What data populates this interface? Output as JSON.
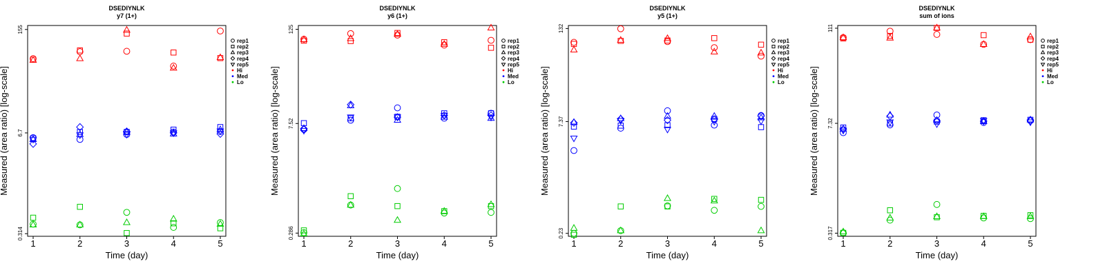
{
  "chart_data": [
    {
      "type": "scatter",
      "title": "DSEDIYNLK",
      "subtitle": "y7 (1+)",
      "xlabel": "Time (day)",
      "ylabel": "Measured (area ratio) [log-scale]",
      "x_ticks": [
        "1",
        "2",
        "3",
        "4",
        "5"
      ],
      "y_ticks": [
        {
          "value": 0.314,
          "label": "0.314"
        },
        {
          "value": 6.7,
          "label": "6.7"
        },
        {
          "value": 155,
          "label": "155"
        }
      ],
      "ylim": [
        0.29,
        175
      ],
      "legend": {
        "position": "right",
        "replicates": [
          {
            "name": "rep1",
            "marker": "circle"
          },
          {
            "name": "rep2",
            "marker": "square"
          },
          {
            "name": "rep3",
            "marker": "triangle-up"
          },
          {
            "name": "rep4",
            "marker": "diamond"
          },
          {
            "name": "rep5",
            "marker": "triangle-down"
          }
        ],
        "levels": [
          {
            "name": "Hi",
            "color": "#ff0000"
          },
          {
            "name": "Med",
            "color": "#0000ff"
          },
          {
            "name": "Lo",
            "color": "#00cc00"
          }
        ]
      },
      "series": [
        {
          "level": "Hi",
          "rep": "rep1",
          "x": [
            1,
            2,
            3,
            4,
            5
          ],
          "y": [
            64,
            79,
            80,
            51,
            148
          ]
        },
        {
          "level": "Hi",
          "rep": "rep2",
          "x": [
            1,
            2,
            3,
            4,
            5
          ],
          "y": [
            62,
            82,
            137,
            77,
            65
          ]
        },
        {
          "level": "Hi",
          "rep": "rep3",
          "x": [
            1,
            2,
            3,
            4,
            5
          ],
          "y": [
            61,
            64,
            152,
            48,
            66
          ]
        },
        {
          "level": "Med",
          "rep": "rep1",
          "x": [
            1,
            2,
            3,
            4,
            5
          ],
          "y": [
            5.8,
            5.5,
            6.4,
            6.9,
            7.0
          ]
        },
        {
          "level": "Med",
          "rep": "rep2",
          "x": [
            1,
            2,
            3,
            4,
            5
          ],
          "y": [
            5.7,
            6.9,
            6.9,
            7.4,
            8.0
          ]
        },
        {
          "level": "Med",
          "rep": "rep3",
          "x": [
            1,
            2,
            3,
            4,
            5
          ],
          "y": [
            5.5,
            6.4,
            6.9,
            6.5,
            7.4
          ]
        },
        {
          "level": "Med",
          "rep": "rep4",
          "x": [
            1,
            2,
            3,
            4,
            5
          ],
          "y": [
            4.8,
            8.0,
            7.0,
            6.7,
            6.5
          ]
        },
        {
          "level": "Med",
          "rep": "rep5",
          "x": [
            1,
            2,
            3,
            4,
            5
          ],
          "y": [
            5.5,
            6.3,
            6.4,
            6.7,
            7.1
          ]
        },
        {
          "level": "Lo",
          "rep": "rep1",
          "x": [
            1,
            2,
            3,
            4,
            5
          ],
          "y": [
            0.42,
            0.41,
            0.6,
            0.38,
            0.44
          ]
        },
        {
          "level": "Lo",
          "rep": "rep2",
          "x": [
            1,
            2,
            3,
            4,
            5
          ],
          "y": [
            0.51,
            0.71,
            0.32,
            0.43,
            0.37
          ]
        },
        {
          "level": "Lo",
          "rep": "rep3",
          "x": [
            1,
            2,
            3,
            4,
            5
          ],
          "y": [
            0.41,
            0.41,
            0.44,
            0.49,
            0.42
          ]
        }
      ]
    },
    {
      "type": "scatter",
      "title": "DSEDIYNLK",
      "subtitle": "y6 (1+)",
      "xlabel": "Time (day)",
      "ylabel": "Measured (area ratio) [log-scale]",
      "x_ticks": [
        "1",
        "2",
        "3",
        "4",
        "5"
      ],
      "y_ticks": [
        {
          "value": 0.286,
          "label": "0.286"
        },
        {
          "value": 7.52,
          "label": "7.52"
        },
        {
          "value": 125,
          "label": "125"
        }
      ],
      "ylim": [
        0.26,
        140
      ],
      "legend": {
        "position": "right",
        "replicates": [
          {
            "name": "rep1",
            "marker": "circle"
          },
          {
            "name": "rep2",
            "marker": "square"
          },
          {
            "name": "rep3",
            "marker": "triangle-up"
          },
          {
            "name": "rep4",
            "marker": "diamond"
          },
          {
            "name": "rep5",
            "marker": "triangle-down"
          }
        ],
        "levels": [
          {
            "name": "Hi",
            "color": "#ff0000"
          },
          {
            "name": "Med",
            "color": "#0000ff"
          },
          {
            "name": "Lo",
            "color": "#00cc00"
          }
        ]
      },
      "series": [
        {
          "level": "Hi",
          "rep": "rep1",
          "x": [
            1,
            2,
            3,
            4,
            5
          ],
          "y": [
            93,
            110,
            105,
            78,
            90
          ]
        },
        {
          "level": "Hi",
          "rep": "rep2",
          "x": [
            1,
            2,
            3,
            4,
            5
          ],
          "y": [
            89,
            88,
            112,
            85,
            72
          ]
        },
        {
          "level": "Hi",
          "rep": "rep3",
          "x": [
            1,
            2,
            3,
            4,
            5
          ],
          "y": [
            92,
            95,
            108,
            80,
            130
          ]
        },
        {
          "level": "Med",
          "rep": "rep1",
          "x": [
            1,
            2,
            3,
            4,
            5
          ],
          "y": [
            6.3,
            8.3,
            12.0,
            8.8,
            10.2
          ]
        },
        {
          "level": "Med",
          "rep": "rep2",
          "x": [
            1,
            2,
            3,
            4,
            5
          ],
          "y": [
            7.6,
            8.8,
            9.2,
            10.2,
            10.2
          ]
        },
        {
          "level": "Med",
          "rep": "rep3",
          "x": [
            1,
            2,
            3,
            4,
            5
          ],
          "y": [
            6.5,
            12.8,
            8.3,
            9.1,
            8.8
          ]
        },
        {
          "level": "Med",
          "rep": "rep4",
          "x": [
            1,
            2,
            3,
            4,
            5
          ],
          "y": [
            6.4,
            13.2,
            9.1,
            9.6,
            9.6
          ]
        },
        {
          "level": "Med",
          "rep": "rep5",
          "x": [
            1,
            2,
            3,
            4,
            5
          ],
          "y": [
            6.1,
            9.1,
            9.1,
            9.6,
            9.1
          ]
        },
        {
          "level": "Lo",
          "rep": "rep1",
          "x": [
            1,
            2,
            3,
            4,
            5
          ],
          "y": [
            0.29,
            0.66,
            1.08,
            0.52,
            0.53
          ]
        },
        {
          "level": "Lo",
          "rep": "rep2",
          "x": [
            1,
            2,
            3,
            4,
            5
          ],
          "y": [
            0.31,
            0.86,
            0.64,
            0.55,
            0.64
          ]
        },
        {
          "level": "Lo",
          "rep": "rep3",
          "x": [
            1,
            2,
            3,
            4,
            5
          ],
          "y": [
            0.28,
            0.66,
            0.42,
            0.55,
            0.67
          ]
        }
      ]
    },
    {
      "type": "scatter",
      "title": "DSEDIYNLK",
      "subtitle": "y5 (1+)",
      "xlabel": "Time (day)",
      "ylabel": "Measured (area ratio) [log-scale]",
      "x_ticks": [
        "1",
        "2",
        "3",
        "4",
        "5"
      ],
      "y_ticks": [
        {
          "value": 0.23,
          "label": "0.23"
        },
        {
          "value": 7.37,
          "label": "7.37"
        },
        {
          "value": 132,
          "label": "132"
        }
      ],
      "ylim": [
        0.21,
        145
      ],
      "legend": {
        "position": "right",
        "replicates": [
          {
            "name": "rep1",
            "marker": "circle"
          },
          {
            "name": "rep2",
            "marker": "square"
          },
          {
            "name": "rep3",
            "marker": "triangle-up"
          },
          {
            "name": "rep4",
            "marker": "diamond"
          },
          {
            "name": "rep5",
            "marker": "triangle-down"
          }
        ],
        "levels": [
          {
            "name": "Hi",
            "color": "#ff0000"
          },
          {
            "name": "Med",
            "color": "#0000ff"
          },
          {
            "name": "Lo",
            "color": "#00cc00"
          }
        ]
      },
      "series": [
        {
          "level": "Hi",
          "rep": "rep1",
          "x": [
            1,
            2,
            3,
            4,
            5
          ],
          "y": [
            86,
            131,
            88,
            73,
            56
          ]
        },
        {
          "level": "Hi",
          "rep": "rep2",
          "x": [
            1,
            2,
            3,
            4,
            5
          ],
          "y": [
            82,
            90,
            91,
            98,
            80
          ]
        },
        {
          "level": "Hi",
          "rep": "rep3",
          "x": [
            1,
            2,
            3,
            4,
            5
          ],
          "y": [
            68,
            92,
            97,
            64,
            62
          ]
        },
        {
          "level": "Med",
          "rep": "rep1",
          "x": [
            1,
            2,
            3,
            4,
            5
          ],
          "y": [
            3.0,
            6.0,
            10.3,
            6.6,
            8.9
          ]
        },
        {
          "level": "Med",
          "rep": "rep2",
          "x": [
            1,
            2,
            3,
            4,
            5
          ],
          "y": [
            6.3,
            6.5,
            6.6,
            8.0,
            6.2
          ]
        },
        {
          "level": "Med",
          "rep": "rep3",
          "x": [
            1,
            2,
            3,
            4,
            5
          ],
          "y": [
            7.2,
            8.1,
            8.7,
            8.7,
            8.3
          ]
        },
        {
          "level": "Med",
          "rep": "rep4",
          "x": [
            1,
            2,
            3,
            4,
            5
          ],
          "y": [
            7.1,
            8.0,
            7.7,
            7.9,
            8.8
          ]
        },
        {
          "level": "Med",
          "rep": "rep5",
          "x": [
            1,
            2,
            3,
            4,
            5
          ],
          "y": [
            4.4,
            7.6,
            5.8,
            7.4,
            7.5
          ]
        },
        {
          "level": "Lo",
          "rep": "rep1",
          "x": [
            1,
            2,
            3,
            4,
            5
          ],
          "y": [
            0.23,
            0.25,
            0.54,
            0.47,
            0.53
          ]
        },
        {
          "level": "Lo",
          "rep": "rep2",
          "x": [
            1,
            2,
            3,
            4,
            5
          ],
          "y": [
            0.22,
            0.53,
            0.53,
            0.67,
            0.65
          ]
        },
        {
          "level": "Lo",
          "rep": "rep3",
          "x": [
            1,
            2,
            3,
            4,
            5
          ],
          "y": [
            0.27,
            0.25,
            0.68,
            0.63,
            0.25
          ]
        }
      ]
    },
    {
      "type": "scatter",
      "title": "DSEDIYNLK",
      "subtitle": "sum of ions",
      "xlabel": "Time (day)",
      "ylabel": "Measured (area ratio) [log-scale]",
      "x_ticks": [
        "1",
        "2",
        "3",
        "4",
        "5"
      ],
      "y_ticks": [
        {
          "value": 0.317,
          "label": "0.317"
        },
        {
          "value": 7.32,
          "label": "7.32"
        },
        {
          "value": 111,
          "label": "111"
        }
      ],
      "ylim": [
        0.29,
        120
      ],
      "legend": {
        "position": "right",
        "replicates": [
          {
            "name": "rep1",
            "marker": "circle"
          },
          {
            "name": "rep2",
            "marker": "square"
          },
          {
            "name": "rep3",
            "marker": "triangle-up"
          },
          {
            "name": "rep4",
            "marker": "diamond"
          },
          {
            "name": "rep5",
            "marker": "triangle-down"
          }
        ],
        "levels": [
          {
            "name": "Hi",
            "color": "#ff0000"
          },
          {
            "name": "Med",
            "color": "#0000ff"
          },
          {
            "name": "Lo",
            "color": "#00cc00"
          }
        ]
      },
      "series": [
        {
          "level": "Hi",
          "rep": "rep1",
          "x": [
            1,
            2,
            3,
            4,
            5
          ],
          "y": [
            85,
            102,
            93,
            70,
            80
          ]
        },
        {
          "level": "Hi",
          "rep": "rep2",
          "x": [
            1,
            2,
            3,
            4,
            5
          ],
          "y": [
            83,
            89,
            112,
            91,
            80
          ]
        },
        {
          "level": "Hi",
          "rep": "rep3",
          "x": [
            1,
            2,
            3,
            4,
            5
          ],
          "y": [
            85,
            84,
            112,
            70,
            87
          ]
        },
        {
          "level": "Med",
          "rep": "rep1",
          "x": [
            1,
            2,
            3,
            4,
            5
          ],
          "y": [
            5.6,
            7.0,
            9.3,
            7.5,
            7.9
          ]
        },
        {
          "level": "Med",
          "rep": "rep2",
          "x": [
            1,
            2,
            3,
            4,
            5
          ],
          "y": [
            6.5,
            7.3,
            7.7,
            8.0,
            8.1
          ]
        },
        {
          "level": "Med",
          "rep": "rep3",
          "x": [
            1,
            2,
            3,
            4,
            5
          ],
          "y": [
            6.2,
            9.3,
            8.0,
            7.7,
            8.1
          ]
        },
        {
          "level": "Med",
          "rep": "rep4",
          "x": [
            1,
            2,
            3,
            4,
            5
          ],
          "y": [
            6.2,
            9.0,
            7.9,
            7.8,
            7.9
          ]
        },
        {
          "level": "Med",
          "rep": "rep5",
          "x": [
            1,
            2,
            3,
            4,
            5
          ],
          "y": [
            6.0,
            7.6,
            7.2,
            7.9,
            7.6
          ]
        },
        {
          "level": "Lo",
          "rep": "rep1",
          "x": [
            1,
            2,
            3,
            4,
            5
          ],
          "y": [
            0.32,
            0.46,
            0.72,
            0.49,
            0.48
          ]
        },
        {
          "level": "Lo",
          "rep": "rep2",
          "x": [
            1,
            2,
            3,
            4,
            5
          ],
          "y": [
            0.32,
            0.61,
            0.5,
            0.52,
            0.53
          ]
        },
        {
          "level": "Lo",
          "rep": "rep3",
          "x": [
            1,
            2,
            3,
            4,
            5
          ],
          "y": [
            0.33,
            0.49,
            0.51,
            0.51,
            0.51
          ]
        }
      ]
    }
  ]
}
